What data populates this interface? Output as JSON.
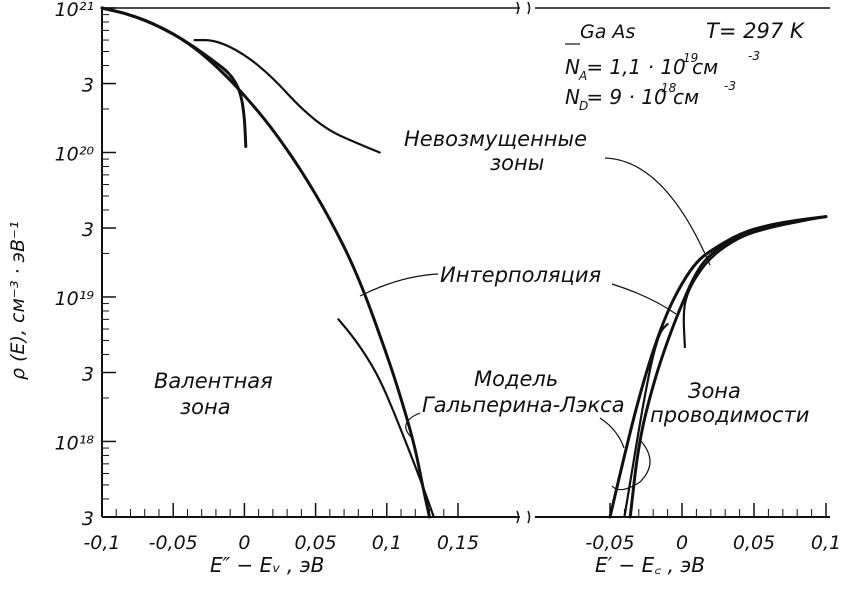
{
  "chart_data": {
    "type": "line",
    "y_scale": "log",
    "ylim": [
      3e+17,
      1e+21
    ],
    "ylabel": "ρ (E), см⁻³ · эВ⁻¹",
    "y_ticks": [
      {
        "value": 1e+21,
        "label": "10²¹"
      },
      {
        "value": 3e+20,
        "label": "3"
      },
      {
        "value": 1e+20,
        "label": "10²⁰"
      },
      {
        "value": 3e+19,
        "label": "3"
      },
      {
        "value": 1e+19,
        "label": "10¹⁹"
      },
      {
        "value": 3e+18,
        "label": "3"
      },
      {
        "value": 1e+18,
        "label": "10¹⁸"
      },
      {
        "value": 3e+17,
        "label": "3"
      }
    ],
    "panels": [
      {
        "name": "valence",
        "xlim": [
          -0.1,
          0.15
        ],
        "xlabel": "E″ − Eᵥ ,  эВ",
        "x_ticks": [
          {
            "value": -0.1,
            "label": "-0,1"
          },
          {
            "value": -0.05,
            "label": "-0,05"
          },
          {
            "value": 0,
            "label": "0"
          },
          {
            "value": 0.05,
            "label": "0,05"
          },
          {
            "value": 0.1,
            "label": "0,1"
          },
          {
            "value": 0.15,
            "label": "0,15"
          }
        ],
        "series": [
          {
            "x": [
              -0.1,
              -0.08,
              -0.06,
              -0.04,
              -0.02,
              0.0,
              0.02,
              0.04,
              0.06,
              0.08,
              0.1,
              0.11,
              0.12,
              0.125,
              0.13
            ],
            "y": [
              1e+21,
              9e+20,
              7.5e+20,
              5.8e+20,
              4e+20,
              2.5e+20,
              1.45e+20,
              7.5e+19,
              3.5e+19,
              1.4e+19,
              4e+18,
              2e+18,
              9e+17,
              5e+17,
              3e+17
            ]
          },
          {
            "x": [
              -0.1,
              -0.08,
              -0.06,
              -0.04,
              -0.02,
              -0.01,
              -0.003,
              0.0,
              0.001
            ],
            "y": [
              1e+21,
              9e+20,
              7.5e+20,
              5.8e+20,
              4.2e+20,
              3.5e+20,
              2.7e+20,
              1.8e+20,
              1.1e+20
            ]
          },
          {
            "x": [
              -0.035,
              -0.02,
              0.0,
              0.02,
              0.04,
              0.06,
              0.08,
              0.095
            ],
            "y": [
              6e+20,
              6e+20,
              4.8e+20,
              3.3e+20,
              2e+20,
              1.4e+20,
              1.15e+20,
              1e+20
            ]
          },
          {
            "x": [
              0.066,
              0.075,
              0.085,
              0.095,
              0.105,
              0.115,
              0.125,
              0.133
            ],
            "y": [
              7e+18,
              5.5e+18,
              4e+18,
              2.7e+18,
              1.6e+18,
              9e+17,
              5e+17,
              3e+17
            ]
          }
        ]
      },
      {
        "name": "conduction",
        "xlim": [
          -0.05,
          0.1
        ],
        "xlabel": "E′ − E꜀ ,  эВ",
        "x_ticks": [
          {
            "value": -0.05,
            "label": "-0,05"
          },
          {
            "value": 0,
            "label": "0"
          },
          {
            "value": 0.05,
            "label": "0,05"
          },
          {
            "value": 0.1,
            "label": "0,1"
          }
        ],
        "series": [
          {
            "x": [
              -0.05,
              -0.04,
              -0.03,
              -0.02,
              -0.01,
              0.0,
              0.01,
              0.02,
              0.04,
              0.06,
              0.08,
              0.1
            ],
            "y": [
              3e+17,
              8e+17,
              2e+18,
              4.3e+18,
              8e+18,
              1.25e+19,
              1.75e+19,
              2.1e+19,
              2.75e+19,
              3.15e+19,
              3.4e+19,
              3.6e+19
            ]
          },
          {
            "x": [
              -0.036,
              -0.03,
              -0.02,
              -0.01,
              0.0,
              0.01,
              0.02,
              0.04,
              0.06,
              0.08,
              0.1
            ],
            "y": [
              3e+17,
              1e+18,
              2.5e+18,
              5e+18,
              9e+18,
              1.5e+19,
              2e+19,
              2.7e+19,
              3.1e+19,
              3.35e+19,
              3.6e+19
            ]
          },
          {
            "x": [
              0.002,
              0.001,
              0.002,
              0.008,
              0.02,
              0.04,
              0.06,
              0.08,
              0.1
            ],
            "y": [
              4.5e+18,
              7e+18,
              9.5e+18,
              1.3e+19,
              1.9e+19,
              2.6e+19,
              3e+19,
              3.3e+19,
              3.6e+19
            ]
          },
          {
            "x": [
              -0.04,
              -0.035,
              -0.03,
              -0.025,
              -0.02,
              -0.015,
              -0.01
            ],
            "y": [
              3e+17,
              6e+17,
              1.2e+18,
              2.3e+18,
              4e+18,
              5.8e+18,
              6.5e+18
            ]
          }
        ]
      }
    ],
    "annotations": {
      "material": "Ga As",
      "temperature": "T= 297 K",
      "na": "N  = 1,1 · 10  см",
      "na_sub": "A",
      "na_exp": "19",
      "na_unit_exp": "-3",
      "nd": "N  = 9 · 10  см",
      "nd_sub": "D",
      "nd_exp": "18",
      "nd_unit_exp": "-3",
      "unperturbed_1": "Невозмущенные",
      "unperturbed_2": "зоны",
      "interpolation": "Интерполяция",
      "model_1": "Модель",
      "model_2": "Гальперина-Лэкса",
      "valence_1": "Валентная",
      "valence_2": "зона",
      "conduction_1": "Зона",
      "conduction_2": "проводимости"
    }
  }
}
